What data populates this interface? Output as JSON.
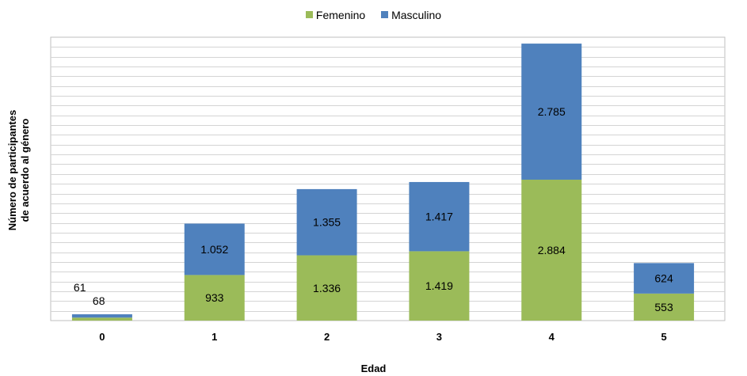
{
  "chart_data": {
    "type": "bar",
    "stacked": true,
    "categories": [
      "0",
      "1",
      "2",
      "3",
      "4",
      "5"
    ],
    "series": [
      {
        "name": "Femenino",
        "color": "#9BBB59",
        "values": [
          61,
          933,
          1336,
          1419,
          2884,
          553
        ],
        "labels": [
          "61",
          "933",
          "1.336",
          "1.419",
          "2.884",
          "553"
        ]
      },
      {
        "name": "Masculino",
        "color": "#4F81BD",
        "values": [
          68,
          1052,
          1355,
          1417,
          2785,
          624
        ],
        "labels": [
          "68",
          "1.052",
          "1.355",
          "1.417",
          "2.785",
          "624"
        ]
      }
    ],
    "xlabel": "Edad",
    "ylabel_lines": [
      "Número de participantes",
      "de acuerdo al género"
    ],
    "ylim": [
      0,
      5800
    ],
    "grid": true,
    "gridline_step": 200,
    "legend_position": "top-center"
  }
}
